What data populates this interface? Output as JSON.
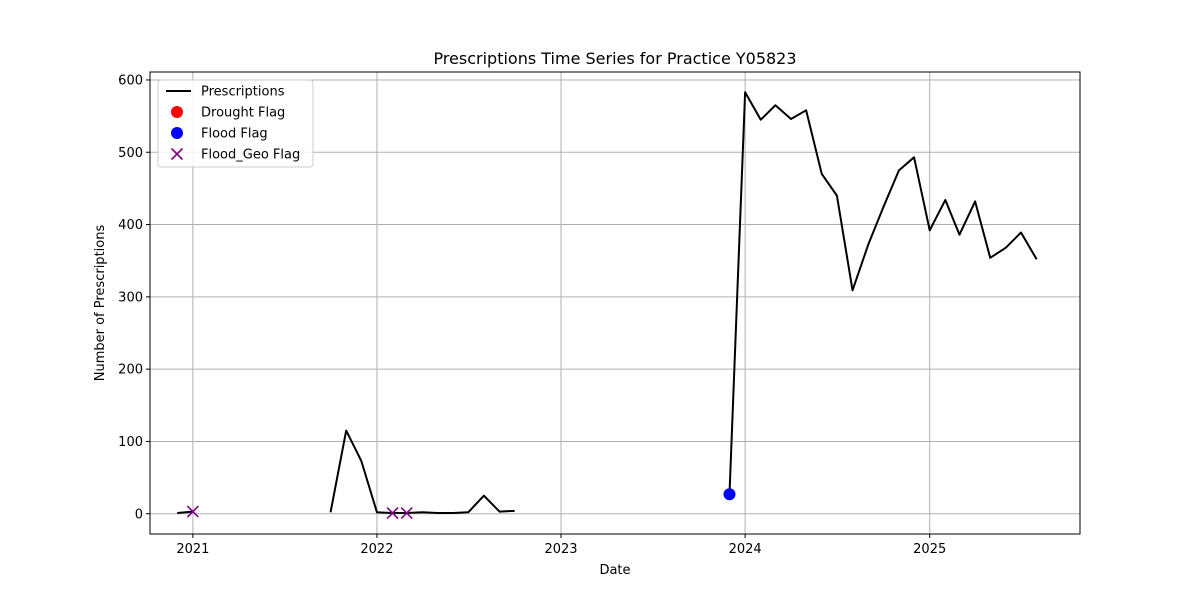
{
  "chart_data": {
    "type": "line",
    "title": "Prescriptions Time Series for Practice Y05823",
    "xlabel": "Date",
    "ylabel": "Number of Prescriptions",
    "xlim": [
      "2020-10-08",
      "2025-10-26"
    ],
    "ylim": [
      -28,
      611
    ],
    "grid": true,
    "legend_position": "top-left",
    "x_ticks": [
      {
        "date": "2021-01-01",
        "label": "2021"
      },
      {
        "date": "2022-01-01",
        "label": "2022"
      },
      {
        "date": "2023-01-01",
        "label": "2023"
      },
      {
        "date": "2024-01-01",
        "label": "2024"
      },
      {
        "date": "2025-01-01",
        "label": "2025"
      }
    ],
    "y_ticks": [
      0,
      100,
      200,
      300,
      400,
      500,
      600
    ],
    "legend": [
      {
        "label": "Prescriptions",
        "marker": "line",
        "color": "#000000"
      },
      {
        "label": "Drought Flag",
        "marker": "circle",
        "color": "#ff0000"
      },
      {
        "label": "Flood Flag",
        "marker": "circle",
        "color": "#0000ff"
      },
      {
        "label": "Flood_Geo Flag",
        "marker": "x",
        "color": "#800080"
      }
    ],
    "series": [
      {
        "name": "Prescriptions",
        "color": "#000000",
        "segments": [
          [
            {
              "date": "2020-12-01",
              "value": 1
            },
            {
              "date": "2021-01-01",
              "value": 3
            }
          ],
          [
            {
              "date": "2021-10-01",
              "value": 2
            },
            {
              "date": "2021-11-01",
              "value": 115
            },
            {
              "date": "2021-12-01",
              "value": 73
            },
            {
              "date": "2022-01-01",
              "value": 2
            },
            {
              "date": "2022-02-01",
              "value": 1
            },
            {
              "date": "2022-03-01",
              "value": 1
            },
            {
              "date": "2022-04-01",
              "value": 2
            },
            {
              "date": "2022-05-01",
              "value": 1
            },
            {
              "date": "2022-06-01",
              "value": 1
            },
            {
              "date": "2022-07-01",
              "value": 2
            },
            {
              "date": "2022-08-01",
              "value": 25
            },
            {
              "date": "2022-09-01",
              "value": 3
            },
            {
              "date": "2022-10-01",
              "value": 4
            }
          ],
          [
            {
              "date": "2023-12-01",
              "value": 27
            },
            {
              "date": "2024-01-01",
              "value": 583
            },
            {
              "date": "2024-02-01",
              "value": 545
            },
            {
              "date": "2024-03-01",
              "value": 565
            },
            {
              "date": "2024-04-01",
              "value": 546
            },
            {
              "date": "2024-05-01",
              "value": 558
            },
            {
              "date": "2024-06-01",
              "value": 470
            },
            {
              "date": "2024-07-01",
              "value": 440
            },
            {
              "date": "2024-08-01",
              "value": 309
            },
            {
              "date": "2024-09-01",
              "value": 372
            },
            {
              "date": "2024-10-01",
              "value": 424
            },
            {
              "date": "2024-11-01",
              "value": 475
            },
            {
              "date": "2024-12-01",
              "value": 493
            },
            {
              "date": "2025-01-01",
              "value": 392
            },
            {
              "date": "2025-02-01",
              "value": 434
            },
            {
              "date": "2025-03-01",
              "value": 386
            },
            {
              "date": "2025-04-01",
              "value": 432
            },
            {
              "date": "2025-05-01",
              "value": 354
            },
            {
              "date": "2025-06-01",
              "value": 368
            },
            {
              "date": "2025-07-01",
              "value": 389
            },
            {
              "date": "2025-08-01",
              "value": 352
            }
          ]
        ]
      }
    ],
    "flags": {
      "drought": [],
      "flood": [
        {
          "date": "2023-12-01",
          "value": 27
        }
      ],
      "flood_geo": [
        {
          "date": "2021-01-01",
          "value": 3
        },
        {
          "date": "2022-02-01",
          "value": 1
        },
        {
          "date": "2022-03-01",
          "value": 1
        }
      ]
    }
  }
}
